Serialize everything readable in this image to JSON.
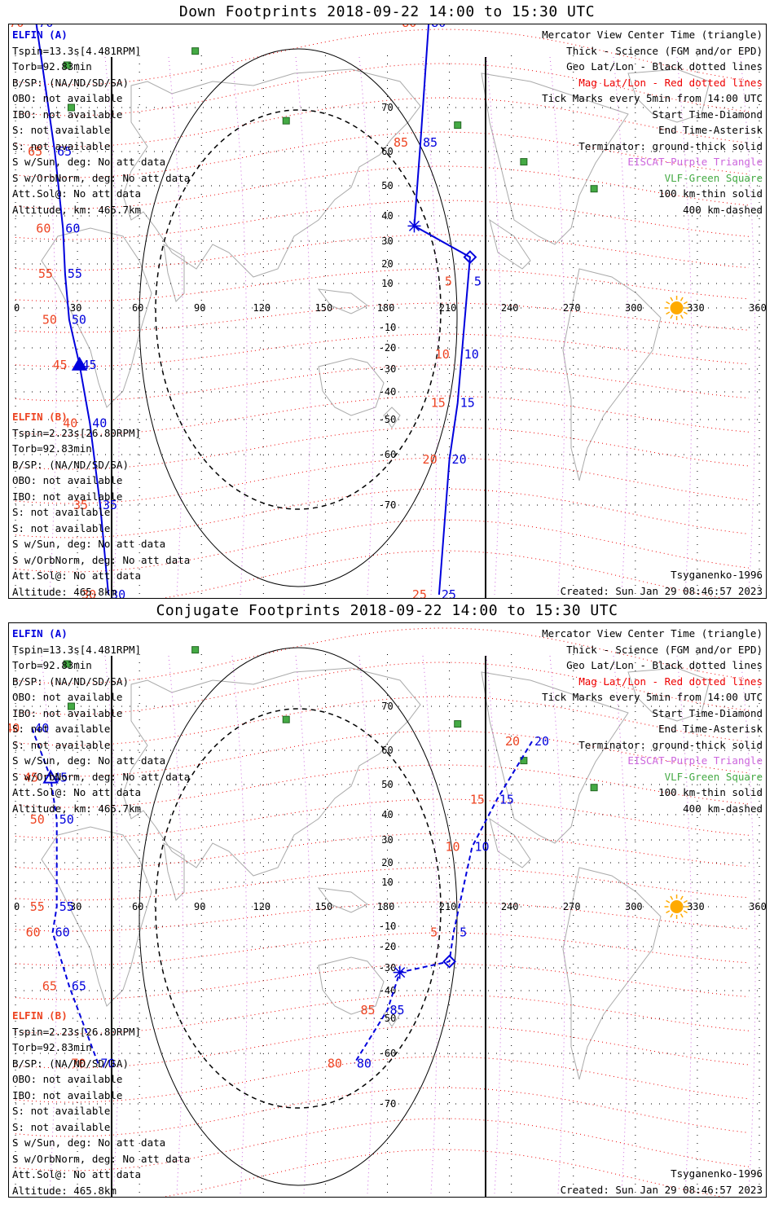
{
  "colors": {
    "blue": "#0000dd",
    "red_label": "#ee4422",
    "mag_grid": "#ee0000",
    "geo_grid": "#000000",
    "violet": "#cc66dd",
    "green": "#44aa44",
    "sun": "#ffaa00",
    "land": "#aaaaaa"
  },
  "legend": {
    "center_time": "Mercator View Center Time (triangle)",
    "thick": "Thick - Science (FGM and/or EPD)",
    "geo": "Geo Lat/Lon - Black dotted lines",
    "mag": "Mag Lat/Lon - Red dotted lines",
    "ticks": "Tick Marks every 5min from 14:00 UTC",
    "start": "Start Time-Diamond",
    "end": "End Time-Asterisk",
    "terminator": "Terminator: ground-thick solid",
    "eiscat": "EISCAT-Purple Triangle",
    "vlf": "VLF-Green Square",
    "km100": "100 km-thin solid",
    "km400": "400 km-dashed"
  },
  "elfin_a": {
    "name": "ELFIN (A)",
    "tspin": "Tspin=13.3s[4.481RPM]",
    "torb": "Torb=92.83min",
    "bsp": "B/SP: (NA/ND/SD/SA)",
    "obo": "OBO: not available",
    "ibo": "IBO: not available",
    "s1": "S: not available",
    "s2": "S: not available",
    "sun": "S w/Sun, deg: No att data",
    "orbnorm": "S w/OrbNorm, deg: No att data",
    "attsol": "Att.Sol@: No att data",
    "alt": "Altitude, km: 465.7km"
  },
  "elfin_b": {
    "name": "ELFIN (B)",
    "tspin": "Tspin=2.23s[26.80RPM]",
    "torb": "Torb=92.83min",
    "bsp": "B/SP: (NA/ND/SD/SA)",
    "obo": "OBO: not available",
    "ibo": "IBO: not available",
    "s1": "S: not available",
    "s2": "S: not available",
    "sun": "S w/Sun, deg: No att data",
    "orbnorm": "S w/OrbNorm, deg: No att data",
    "attsol": "Att.Sol@: No att data",
    "alt": "Altitude: 465.8km"
  },
  "footer": {
    "model": "Tsyganenko-1996",
    "created": "Created: Sun Jan 29 08:46:57 2023"
  },
  "lon_ticks": [
    "0",
    "30",
    "60",
    "90",
    "120",
    "150",
    "180",
    "210",
    "240",
    "270",
    "300",
    "330",
    "360"
  ],
  "lat_ticks": [
    "70",
    "60",
    "50",
    "40",
    "30",
    "20",
    "10",
    "-10",
    "-20",
    "-30",
    "-40",
    "-50",
    "-60",
    "-70"
  ],
  "panels": [
    {
      "title": "Down Footprints 2018-09-22 14:00 to 15:30 UTC",
      "trace_a": [
        {
          "t": "80",
          "lon": 200,
          "lat": 83
        },
        {
          "t": "85",
          "lon": 196,
          "lat": 62
        },
        {
          "t": "end",
          "lon": 193,
          "lat": 36
        },
        {
          "t": "start",
          "lon": 220,
          "lat": 23
        },
        {
          "t": "5",
          "lon": 219,
          "lat": 11
        },
        {
          "t": "10",
          "lon": 216,
          "lat": -23
        },
        {
          "t": "15",
          "lon": 214,
          "lat": -44
        },
        {
          "t": "20",
          "lon": 210,
          "lat": -61
        },
        {
          "t": "25",
          "lon": 205,
          "lat": -82
        }
      ],
      "trace_b": [
        {
          "t": "70",
          "lon": 10,
          "lat": 83
        },
        {
          "t": "65",
          "lon": 19,
          "lat": 60
        },
        {
          "t": "60",
          "lon": 23,
          "lat": 35
        },
        {
          "t": "55",
          "lon": 24,
          "lat": 15
        },
        {
          "t": "50",
          "lon": 26,
          "lat": -6
        },
        {
          "t": "45",
          "lon": 31,
          "lat": -28
        },
        {
          "t": "40",
          "lon": 36,
          "lat": -51
        },
        {
          "t": "35",
          "lon": 41,
          "lat": -70
        },
        {
          "t": "30",
          "lon": 45,
          "lat": -82
        }
      ],
      "labels_a": [
        "80",
        "85",
        "5",
        "10",
        "15",
        "20",
        "25"
      ],
      "labels_b": [
        "70",
        "65",
        "60",
        "55",
        "50",
        "45",
        "40",
        "35"
      ]
    },
    {
      "title": "Conjugate Footprints 2018-09-22 14:00 to 15:30 UTC",
      "trace_a": [
        {
          "t": "20",
          "lon": 250,
          "lat": 62
        },
        {
          "t": "15",
          "lon": 233,
          "lat": 45
        },
        {
          "t": "10",
          "lon": 221,
          "lat": 27
        },
        {
          "t": "5",
          "lon": 212,
          "lat": -13
        },
        {
          "t": "start",
          "lon": 210,
          "lat": -27
        },
        {
          "t": "end",
          "lon": 186,
          "lat": -32
        },
        {
          "t": "85",
          "lon": 180,
          "lat": -47
        },
        {
          "t": "80",
          "lon": 164,
          "lat": -62
        }
      ],
      "trace_b": [
        {
          "t": "40",
          "lon": 8,
          "lat": 65
        },
        {
          "t": "45",
          "lon": 17,
          "lat": 52
        },
        {
          "t": "50",
          "lon": 20,
          "lat": 38
        },
        {
          "t": "55",
          "lon": 20,
          "lat": 0
        },
        {
          "t": "60",
          "lon": 18,
          "lat": -13
        },
        {
          "t": "65",
          "lon": 26,
          "lat": -38
        },
        {
          "t": "70",
          "lon": 40,
          "lat": -62
        }
      ],
      "labels_a": [
        "20",
        "15",
        "10",
        "5",
        "85"
      ],
      "labels_b": [
        "40",
        "45",
        "50",
        "55",
        "60",
        "65",
        "70"
      ]
    }
  ],
  "vlf_stations": [
    {
      "lon": 87,
      "lat": 78
    },
    {
      "lon": 25,
      "lat": 76
    },
    {
      "lon": 27,
      "lat": 70
    },
    {
      "lon": 131,
      "lat": 67
    },
    {
      "lon": 214,
      "lat": 66
    },
    {
      "lon": 246,
      "lat": 57
    },
    {
      "lon": 280,
      "lat": 49
    }
  ],
  "sun_position": {
    "lon": 320,
    "lat": 0
  }
}
